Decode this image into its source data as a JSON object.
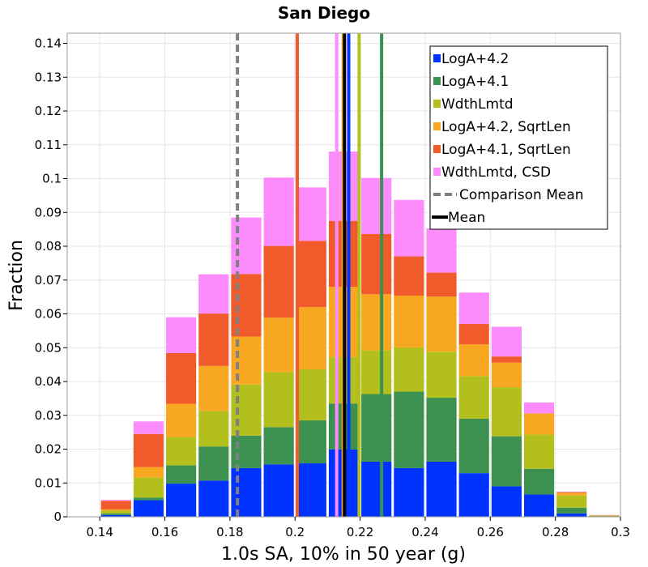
{
  "chart_data": {
    "type": "bar",
    "stacked": true,
    "title": "San Diego",
    "xlabel": "1.0s SA, 10% in 50 year (g)",
    "ylabel": "Fraction",
    "xlim": [
      0.13,
      0.3
    ],
    "ylim": [
      0,
      0.143
    ],
    "bin_width": 0.01,
    "grid": true,
    "x_ticks": [
      0.14,
      0.16,
      0.18,
      0.2,
      0.22,
      0.24,
      0.26,
      0.28,
      0.3
    ],
    "x_tick_labels": [
      "0.14",
      "0.16",
      "0.18",
      "0.2",
      "0.22",
      "0.24",
      "0.26",
      "0.28",
      "0.3"
    ],
    "y_ticks": [
      0,
      0.01,
      0.02,
      0.03,
      0.04,
      0.05,
      0.06,
      0.07,
      0.08,
      0.09,
      0.1,
      0.11,
      0.12,
      0.13,
      0.14
    ],
    "y_tick_labels": [
      "0",
      "0.01",
      "0.02",
      "0.03",
      "0.04",
      "0.05",
      "0.06",
      "0.07",
      "0.08",
      "0.09",
      "0.1",
      "0.11",
      "0.12",
      "0.13",
      "0.14"
    ],
    "bin_starts": [
      0.13,
      0.14,
      0.15,
      0.16,
      0.17,
      0.18,
      0.19,
      0.2,
      0.21,
      0.22,
      0.23,
      0.24,
      0.25,
      0.26,
      0.27,
      0.28,
      0.29
    ],
    "series": [
      {
        "name": "LogA+4.2",
        "color": "#0033ff",
        "values": [
          0.0,
          0.0005,
          0.0049,
          0.0098,
          0.0107,
          0.0144,
          0.0155,
          0.0158,
          0.0199,
          0.0163,
          0.0144,
          0.0163,
          0.0129,
          0.009,
          0.0066,
          0.001,
          0.0001
        ]
      },
      {
        "name": "LogA+4.1",
        "color": "#3d9150",
        "values": [
          0.0,
          0.0005,
          0.0008,
          0.0054,
          0.0101,
          0.0096,
          0.011,
          0.0127,
          0.0136,
          0.02,
          0.0226,
          0.0189,
          0.0161,
          0.0148,
          0.0076,
          0.0017,
          0.0001
        ]
      },
      {
        "name": "WdthLmtd",
        "color": "#b3bf1c",
        "values": [
          0.0,
          0.0008,
          0.0059,
          0.0084,
          0.0105,
          0.0151,
          0.0163,
          0.0151,
          0.0137,
          0.0129,
          0.0131,
          0.0136,
          0.0126,
          0.0145,
          0.0101,
          0.0036,
          0.0001
        ]
      },
      {
        "name": "LogA+4.2, SqrtLen",
        "color": "#f8a720",
        "values": [
          0.0,
          0.0004,
          0.0031,
          0.0098,
          0.0133,
          0.0142,
          0.0161,
          0.0184,
          0.0208,
          0.0166,
          0.0153,
          0.0163,
          0.0094,
          0.0073,
          0.0062,
          0.0008,
          0.0001
        ]
      },
      {
        "name": "LogA+4.1, SqrtLen",
        "color": "#f15a2b",
        "values": [
          0.0001,
          0.0025,
          0.0098,
          0.015,
          0.0155,
          0.0185,
          0.0212,
          0.0196,
          0.0195,
          0.0178,
          0.0116,
          0.0071,
          0.006,
          0.0018,
          0.0001,
          0.0002,
          0.0001
        ]
      },
      {
        "name": "WdthLmtd, CSD",
        "color": "#fc8bfc",
        "values": [
          0.0,
          0.0003,
          0.0037,
          0.0106,
          0.0116,
          0.0167,
          0.0202,
          0.0158,
          0.0205,
          0.0166,
          0.0167,
          0.0131,
          0.0093,
          0.0088,
          0.0032,
          0.0001,
          0.0
        ]
      }
    ],
    "vertical_lines": [
      {
        "label": "LogA+4.1, SqrtLen mean",
        "x": 0.2007,
        "color": "#f15a2b",
        "style": "solid"
      },
      {
        "label": "WdthLmtd, CSD mean",
        "x": 0.2128,
        "color": "#fc8bfc",
        "style": "solid"
      },
      {
        "label": "LogA+4.2, SqrtLen mean",
        "x": 0.2148,
        "color": "#f8a720",
        "style": "solid"
      },
      {
        "label": "LogA+4.2 mean",
        "x": 0.2165,
        "color": "#0033ff",
        "style": "solid"
      },
      {
        "label": "WdthLmtd mean",
        "x": 0.2197,
        "color": "#b3bf1c",
        "style": "solid"
      },
      {
        "label": "LogA+4.1 mean",
        "x": 0.2266,
        "color": "#3d9150",
        "style": "solid"
      },
      {
        "label": "Comparison Mean",
        "x": 0.1823,
        "color": "#808080",
        "style": "dashed"
      },
      {
        "label": "Mean",
        "x": 0.2152,
        "color": "#000000",
        "style": "solid"
      }
    ],
    "legend_position": "top-right",
    "legend": [
      {
        "label": "LogA+4.2",
        "color": "#0033ff",
        "marker": "square"
      },
      {
        "label": "LogA+4.1",
        "color": "#3d9150",
        "marker": "square"
      },
      {
        "label": "WdthLmtd",
        "color": "#b3bf1c",
        "marker": "square"
      },
      {
        "label": "LogA+4.2, SqrtLen",
        "color": "#f8a720",
        "marker": "square"
      },
      {
        "label": "LogA+4.1, SqrtLen",
        "color": "#f15a2b",
        "marker": "square"
      },
      {
        "label": "WdthLmtd, CSD",
        "color": "#fc8bfc",
        "marker": "square"
      },
      {
        "label": "Comparison Mean",
        "color": "#808080",
        "marker": "dashed-line"
      },
      {
        "label": "Mean",
        "color": "#000000",
        "marker": "solid-line"
      }
    ]
  }
}
